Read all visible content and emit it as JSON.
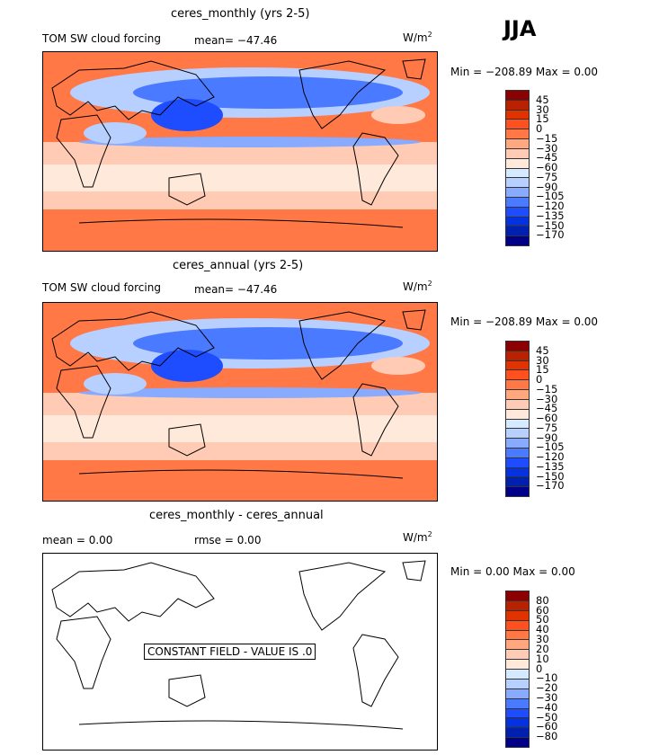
{
  "season": "JJA",
  "panels": [
    {
      "title": "ceres_monthly (yrs 2-5)",
      "left": "TOM SW cloud forcing",
      "mean": "mean= −47.46",
      "units": "W/m",
      "units_sup": "2",
      "minmax": "Min = −208.89 Max =    0.00"
    },
    {
      "title": "ceres_annual (yrs 2-5)",
      "left": "TOM SW cloud forcing",
      "mean": "mean= −47.46",
      "units": "W/m",
      "units_sup": "2",
      "minmax": "Min = −208.89 Max =    0.00"
    },
    {
      "title": "ceres_monthly - ceres_annual",
      "left": "mean =    0.00",
      "mean": "rmse =    0.00",
      "units": "W/m",
      "units_sup": "2",
      "minmax": "Min =    0.00 Max =    0.00",
      "annotation": "CONSTANT FIELD - VALUE IS .0"
    }
  ],
  "colorbar_colors": [
    "#8b0000",
    "#b82200",
    "#e03300",
    "#ff5020",
    "#ff7845",
    "#ffa880",
    "#ffcbb5",
    "#ffe9da",
    "#d6eaff",
    "#b8d0ff",
    "#88aaff",
    "#4a7aff",
    "#1e4cff",
    "#0432e0",
    "#0020b0",
    "#000088"
  ],
  "colorbar_labels_a": [
    "45",
    "30",
    "15",
    "0",
    "−15",
    "−30",
    "−45",
    "−60",
    "−75",
    "−90",
    "−105",
    "−120",
    "−135",
    "−150",
    "−170"
  ],
  "colorbar_labels_b": [
    "80",
    "60",
    "50",
    "40",
    "30",
    "20",
    "10",
    "0",
    "−10",
    "−20",
    "−30",
    "−40",
    "−50",
    "−60",
    "−80"
  ]
}
